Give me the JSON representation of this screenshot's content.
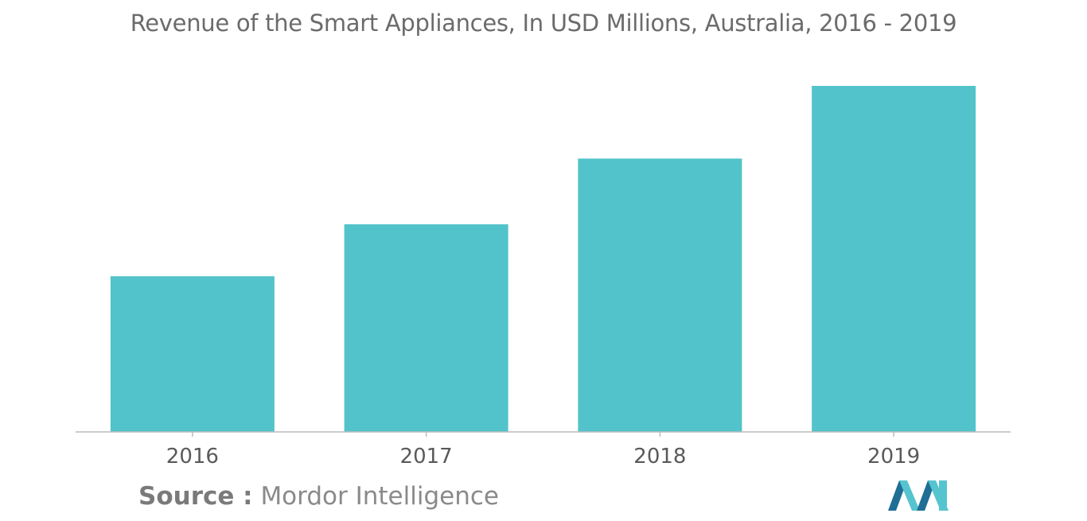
{
  "colors": {
    "bar": "#52c3ca",
    "axis": "#bcbcbc",
    "tick_text": "#5a5a5a",
    "logo_dark": "#1e6e96",
    "logo_light": "#56c4cf"
  },
  "source": {
    "label": "Source :",
    "value": "Mordor Intelligence"
  },
  "logo_icon": "mordor-intelligence-logo-icon",
  "chart_data": {
    "type": "bar",
    "title": "Revenue of the Smart Appliances, In USD Millions, Australia, 2016 - 2019",
    "xlabel": "",
    "ylabel": "",
    "categories": [
      "2016",
      "2017",
      "2018",
      "2019"
    ],
    "values": [
      45,
      60,
      79,
      100
    ],
    "ylim": [
      0,
      100
    ],
    "grid": false,
    "legend": "none"
  }
}
